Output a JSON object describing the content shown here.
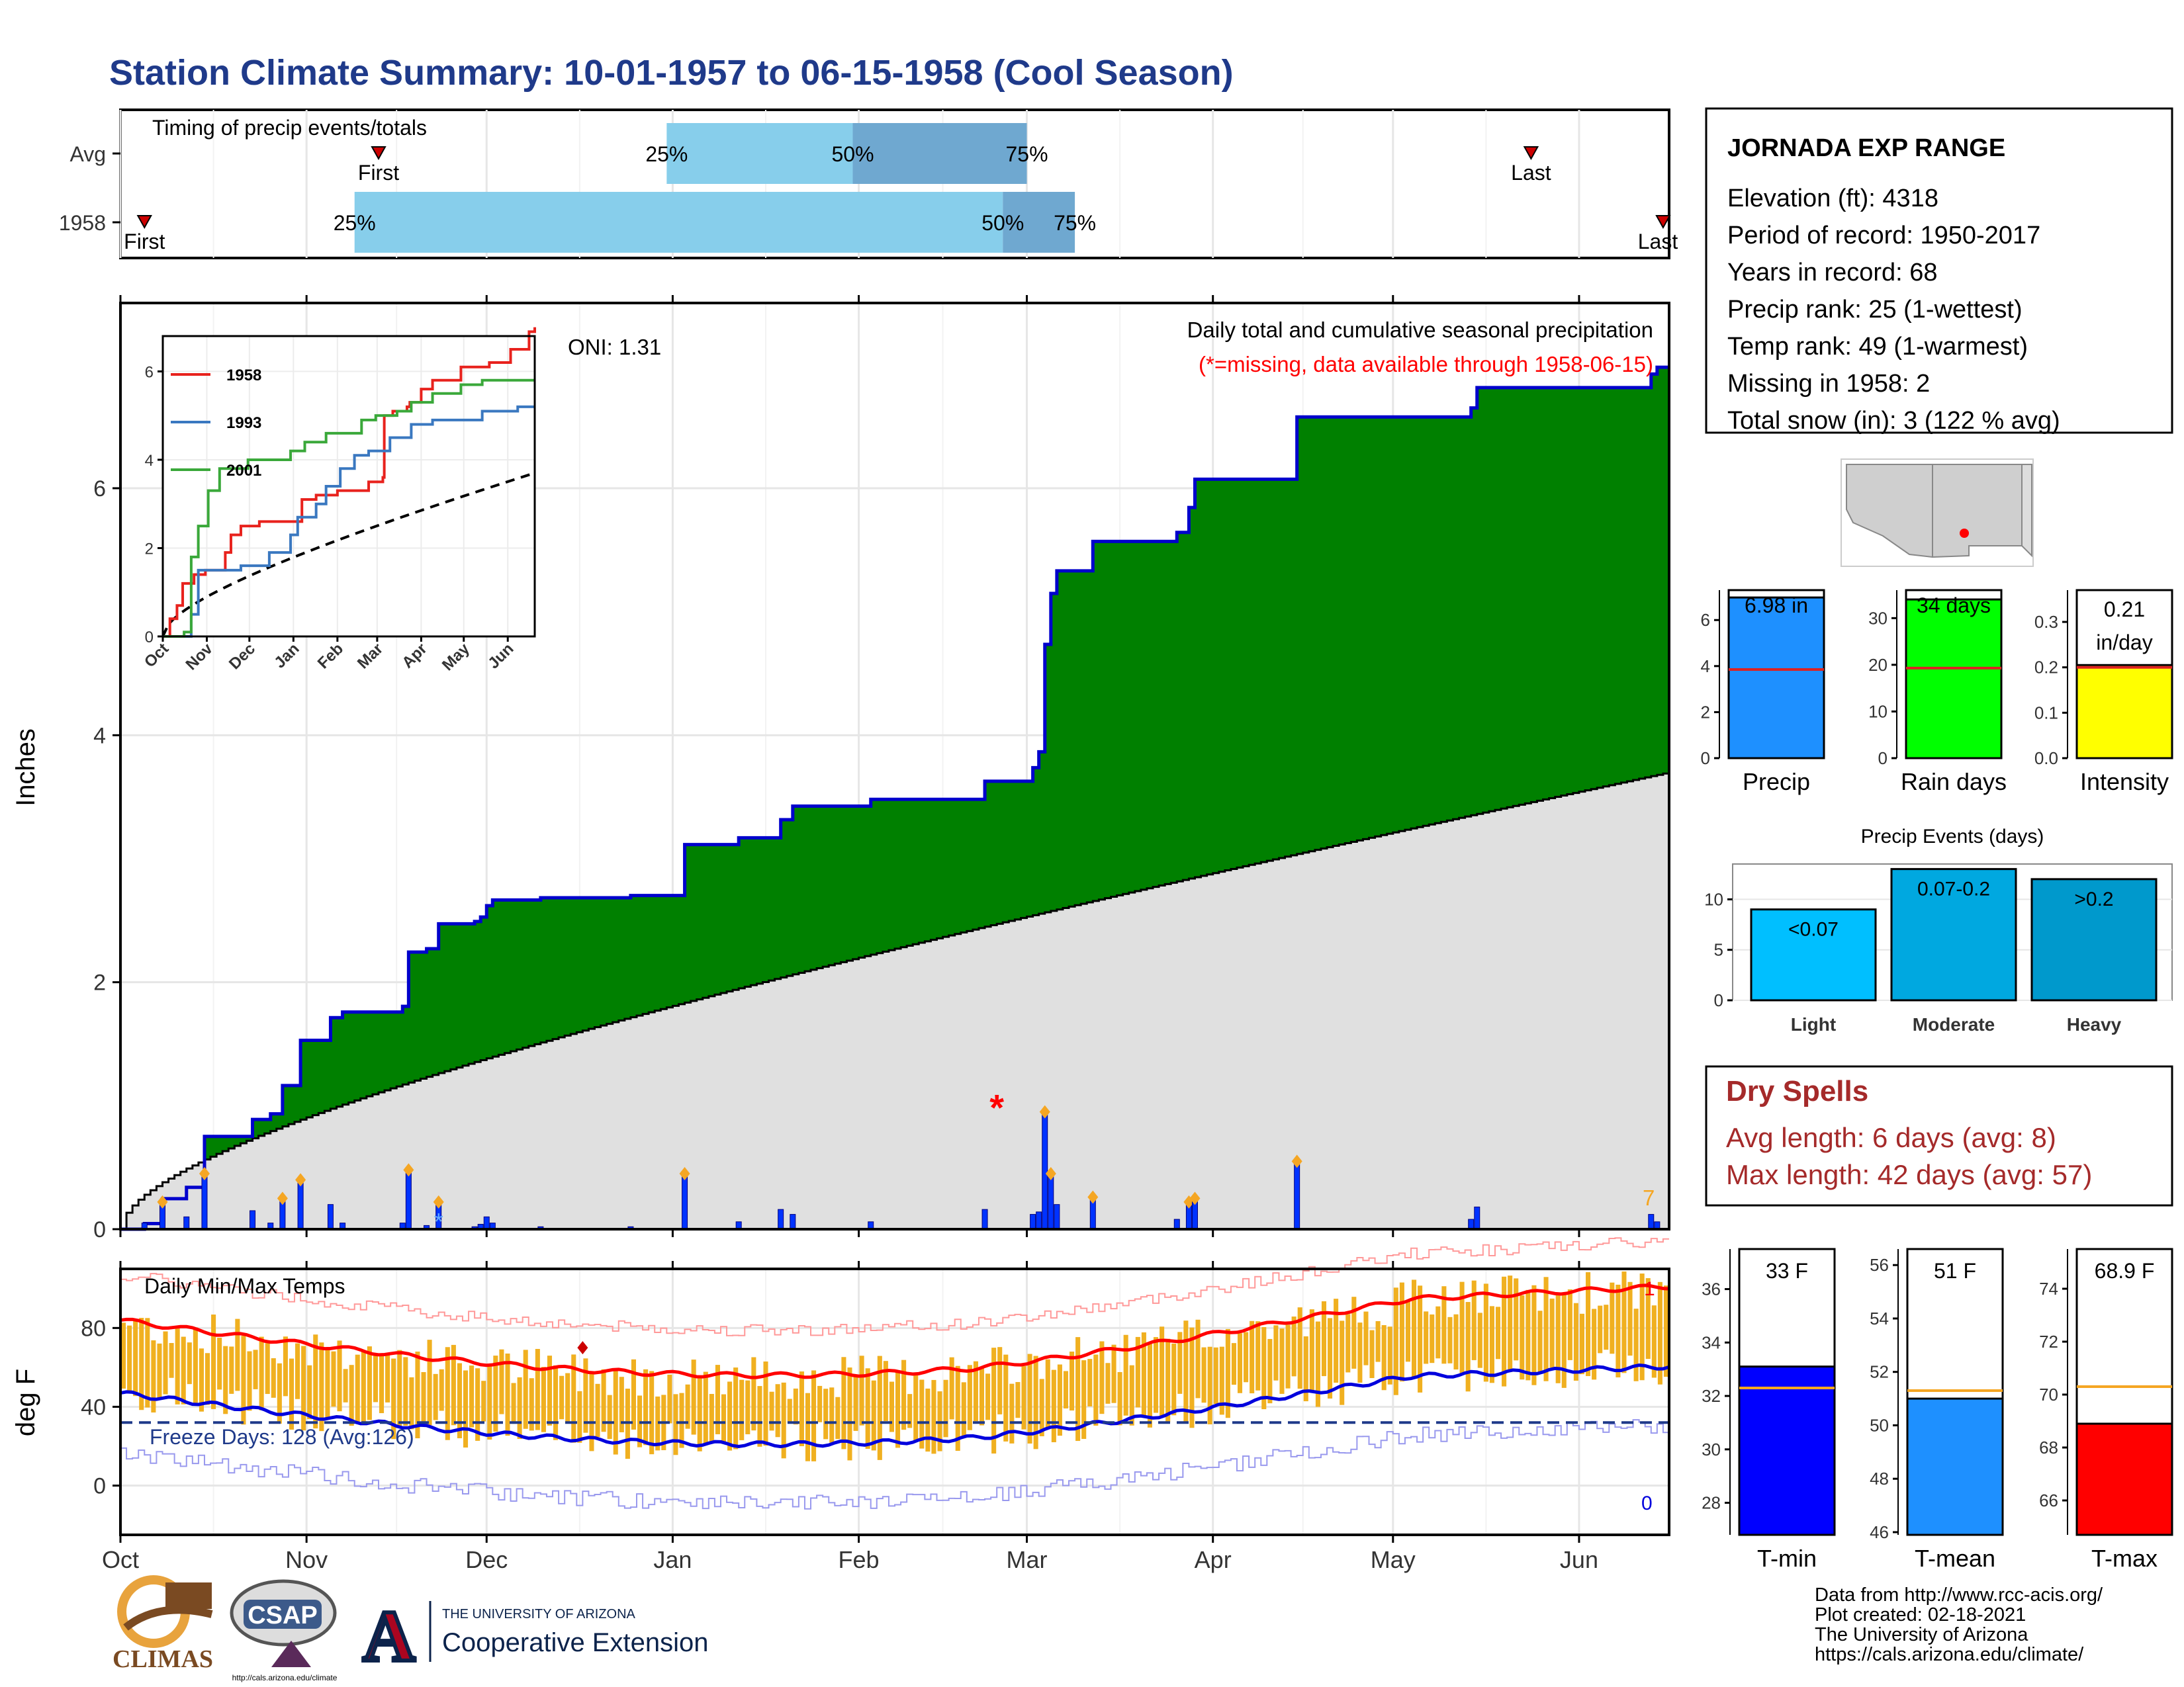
{
  "title": "Station Climate Summary: 10-01-1957 to 06-15-1958 (Cool Season)",
  "colors": {
    "title": "#1f3a8a",
    "cum_fill": "#008000",
    "cum_line": "#0000cc",
    "avg_fill": "#e0e0e0",
    "daily_bar": "#0033ff",
    "temp_bar": "#f0b020",
    "tmax_avg": "#ff0000",
    "tmin_avg": "#0000dd",
    "dry_spell": "#a52a2a",
    "light_blue": "#87ceeb",
    "mid_blue": "#6fa8d0"
  },
  "station": {
    "name": "JORNADA EXP RANGE",
    "lines": [
      "Elevation (ft): 4318",
      "Period of record: 1950-2017",
      "Years in record: 68",
      "Precip rank: 25 (1-wettest)",
      "Temp rank: 49 (1-warmest)",
      "Missing in 1958: 2",
      "Total snow (in): 3 (122 % avg)"
    ]
  },
  "timing": {
    "title": "Timing of precip events/totals",
    "rows": [
      {
        "label": "Avg",
        "first_date": "1957-11-13",
        "q25_date": "1957-12-31",
        "q50_date": "1958-01-31",
        "q75_date": "1958-03-01",
        "last_date": "1958-05-24",
        "first_label": "First",
        "q25_label": "25%",
        "q50_label": "50%",
        "q75_label": "75%",
        "last_label": "Last"
      },
      {
        "label": "1958",
        "first_date": "1957-10-05",
        "q25_date": "1957-11-09",
        "q50_date": "1958-02-25",
        "q75_date": "1958-03-09",
        "last_date": "1958-06-15",
        "first_label": "First",
        "q25_label": "25%",
        "q50_label": "50%",
        "q75_label": "75%",
        "last_label": "Last"
      }
    ]
  },
  "months": [
    "Oct",
    "Nov",
    "Dec",
    "Jan",
    "Feb",
    "Mar",
    "Apr",
    "May",
    "Jun"
  ],
  "precip": {
    "ylabel": "Inches",
    "yticks": [
      0,
      2,
      4,
      6
    ],
    "ylim": [
      0,
      7.5
    ],
    "title": "Daily total and cumulative seasonal precipitation",
    "subtitle": "(*=missing, data available through 1958-06-15)",
    "oni": "ONI: 1.31",
    "right_label": "7",
    "avg_end_value": 3.7,
    "events": [
      {
        "date": "1957-10-05",
        "value": 0.05
      },
      {
        "date": "1957-10-08",
        "value": 0.22
      },
      {
        "date": "1957-10-12",
        "value": 0.1
      },
      {
        "date": "1957-10-15",
        "value": 0.45
      },
      {
        "date": "1957-10-23",
        "value": 0.15
      },
      {
        "date": "1957-10-26",
        "value": 0.05
      },
      {
        "date": "1957-10-28",
        "value": 0.25
      },
      {
        "date": "1957-10-31",
        "value": 0.4
      },
      {
        "date": "1957-11-05",
        "value": 0.2
      },
      {
        "date": "1957-11-07",
        "value": 0.05
      },
      {
        "date": "1957-11-21",
        "value": 0.03
      },
      {
        "date": "1957-12-01",
        "value": 0.1
      },
      {
        "date": "1957-12-02",
        "value": 0.05
      },
      {
        "date": "1957-11-29",
        "value": 0.02
      },
      {
        "date": "1957-11-30",
        "value": 0.04
      },
      {
        "date": "1957-12-10",
        "value": 0.02
      },
      {
        "date": "1957-12-25",
        "value": 0.02
      },
      {
        "date": "1957-11-17",
        "value": 0.05
      },
      {
        "date": "1957-11-18",
        "value": 0.48
      },
      {
        "date": "1957-11-23",
        "value": 0.22
      },
      {
        "date": "1958-01-03",
        "value": 0.45
      },
      {
        "date": "1958-01-12",
        "value": 0.06
      },
      {
        "date": "1958-01-19",
        "value": 0.16
      },
      {
        "date": "1958-01-21",
        "value": 0.12
      },
      {
        "date": "1958-02-03",
        "value": 0.06
      },
      {
        "date": "1958-02-22",
        "value": 0.16
      },
      {
        "date": "1958-03-02",
        "value": 0.12
      },
      {
        "date": "1958-03-03",
        "value": 0.14
      },
      {
        "date": "1958-03-04",
        "value": 0.95
      },
      {
        "date": "1958-03-05",
        "value": 0.45
      },
      {
        "date": "1958-03-06",
        "value": 0.2
      },
      {
        "date": "1958-03-12",
        "value": 0.26
      },
      {
        "date": "1958-03-26",
        "value": 0.08
      },
      {
        "date": "1958-03-28",
        "value": 0.22
      },
      {
        "date": "1958-03-29",
        "value": 0.25
      },
      {
        "date": "1958-04-15",
        "value": 0.55
      },
      {
        "date": "1958-05-14",
        "value": 0.08
      },
      {
        "date": "1958-05-15",
        "value": 0.18
      },
      {
        "date": "1958-06-13",
        "value": 0.12
      },
      {
        "date": "1958-06-14",
        "value": 0.06
      }
    ],
    "missing": [
      {
        "date": "1958-02-24",
        "value": 1.0
      }
    ],
    "snow_marker": {
      "date": "1957-11-23",
      "value": 0.08
    }
  },
  "inset": {
    "yticks": [
      0,
      2,
      4,
      6
    ],
    "ylim": [
      0,
      6.8
    ],
    "months": [
      "Oct",
      "Nov",
      "Dec",
      "Jan",
      "Feb",
      "Mar",
      "Apr",
      "May",
      "Jun"
    ],
    "series": [
      {
        "name": "1958",
        "color": "#e8221d",
        "points": [
          [
            0,
            0
          ],
          [
            5,
            0.4
          ],
          [
            10,
            0.7
          ],
          [
            14,
            1.2
          ],
          [
            22,
            1.4
          ],
          [
            30,
            1.5
          ],
          [
            44,
            1.9
          ],
          [
            48,
            2.3
          ],
          [
            55,
            2.5
          ],
          [
            68,
            2.6
          ],
          [
            95,
            2.6
          ],
          [
            98,
            3.1
          ],
          [
            108,
            3.2
          ],
          [
            123,
            3.3
          ],
          [
            145,
            3.5
          ],
          [
            155,
            3.6
          ],
          [
            156,
            5.0
          ],
          [
            162,
            5.1
          ],
          [
            172,
            5.2
          ],
          [
            174,
            5.3
          ],
          [
            182,
            5.6
          ],
          [
            190,
            5.8
          ],
          [
            210,
            6.1
          ],
          [
            230,
            6.2
          ],
          [
            245,
            6.5
          ],
          [
            258,
            6.9
          ],
          [
            262,
            7.0
          ]
        ]
      },
      {
        "name": "1993",
        "color": "#3a78c0",
        "points": [
          [
            0,
            0
          ],
          [
            20,
            0.5
          ],
          [
            25,
            1.5
          ],
          [
            40,
            1.5
          ],
          [
            55,
            1.6
          ],
          [
            60,
            1.6
          ],
          [
            75,
            1.9
          ],
          [
            90,
            2.3
          ],
          [
            95,
            2.7
          ],
          [
            108,
            3.0
          ],
          [
            115,
            3.4
          ],
          [
            125,
            3.8
          ],
          [
            135,
            4.1
          ],
          [
            145,
            4.2
          ],
          [
            160,
            4.5
          ],
          [
            175,
            4.8
          ],
          [
            190,
            4.9
          ],
          [
            205,
            4.9
          ],
          [
            225,
            5.1
          ],
          [
            250,
            5.2
          ],
          [
            262,
            5.2
          ]
        ]
      },
      {
        "name": "2001",
        "color": "#3aa83a",
        "points": [
          [
            0,
            0
          ],
          [
            15,
            0.1
          ],
          [
            20,
            1.8
          ],
          [
            25,
            2.5
          ],
          [
            32,
            3.3
          ],
          [
            40,
            3.8
          ],
          [
            60,
            4.0
          ],
          [
            75,
            4.0
          ],
          [
            90,
            4.2
          ],
          [
            100,
            4.4
          ],
          [
            115,
            4.6
          ],
          [
            140,
            4.9
          ],
          [
            150,
            5.0
          ],
          [
            165,
            5.1
          ],
          [
            175,
            5.3
          ],
          [
            190,
            5.5
          ],
          [
            210,
            5.7
          ],
          [
            225,
            5.8
          ],
          [
            262,
            5.8
          ]
        ]
      }
    ],
    "avg_end_value": 3.7
  },
  "temp": {
    "title": "Daily Min/Max Temps",
    "ylabel": "deg F",
    "yticks": [
      0,
      40,
      80
    ],
    "ylim": [
      -25,
      110
    ],
    "freeze_label": "Freeze Days: 128 (Avg:126)",
    "freeze_line": 32,
    "record_high_count": "1",
    "record_low_count": "0"
  },
  "bars": {
    "precip": {
      "label": "Precip",
      "yticks": [
        0,
        2,
        4,
        6
      ],
      "ylim": [
        0,
        7.3
      ],
      "value": 6.98,
      "avg": 3.85,
      "text": "6.98 in",
      "color": "#1e90ff"
    },
    "raindays": {
      "label": "Rain days",
      "yticks": [
        0,
        10,
        20,
        30
      ],
      "ylim": [
        0,
        36
      ],
      "value": 34,
      "avg": 19.3,
      "text": "34 days",
      "color": "#00ff00"
    },
    "intensity": {
      "label": "Intensity",
      "yticks": [
        0.0,
        0.1,
        0.2,
        0.3
      ],
      "ylim": [
        0,
        0.37
      ],
      "value": 0.205,
      "avg": 0.2,
      "text_line1": "0.21",
      "text_line2": "in/day",
      "color": "#ffff00"
    }
  },
  "events_chart": {
    "title": "Precip Events (days)",
    "yticks": [
      0,
      5,
      10
    ],
    "ylim": [
      0,
      13.5
    ],
    "categories": [
      "Light",
      "Moderate",
      "Heavy"
    ],
    "values": [
      9,
      13,
      12
    ],
    "labels": [
      "<0.07",
      "0.07-0.2",
      ">0.2"
    ],
    "colors": [
      "#00bfff",
      "#00a8e0",
      "#0099cc"
    ]
  },
  "dry_spells": {
    "title": "Dry Spells",
    "lines": [
      "Avg length: 6 days (avg: 8)",
      "Max length: 42 days (avg: 57)"
    ]
  },
  "temp_bars": [
    {
      "label": "T-min",
      "value_text": "33 F",
      "yticks": [
        28,
        30,
        32,
        34,
        36
      ],
      "ylim": [
        26.8,
        37.5
      ],
      "value": 33.1,
      "avg": 32.3,
      "color": "#0000ff"
    },
    {
      "label": "T-mean",
      "value_text": "51 F",
      "yticks": [
        46,
        48,
        50,
        52,
        54,
        56
      ],
      "ylim": [
        45.9,
        56.6
      ],
      "value": 51.0,
      "avg": 51.3,
      "color": "#1e90ff"
    },
    {
      "label": "T-max",
      "value_text": "68.9 F",
      "yticks": [
        66,
        68,
        70,
        72,
        74
      ],
      "ylim": [
        64.7,
        75.5
      ],
      "value": 68.9,
      "avg": 70.3,
      "color": "#ff0000"
    }
  ],
  "credits": [
    "Data from http://www.rcc-acis.org/",
    "Plot created: 02-18-2021",
    "The University of Arizona",
    "https://cals.arizona.edu/climate/"
  ],
  "logos": {
    "climas": "CLIMAS",
    "csap": "CSAP",
    "csap_url": "http://cals.arizona.edu/climate",
    "ua_line1": "THE UNIVERSITY OF ARIZONA",
    "ua_line2": "Cooperative Extension"
  }
}
